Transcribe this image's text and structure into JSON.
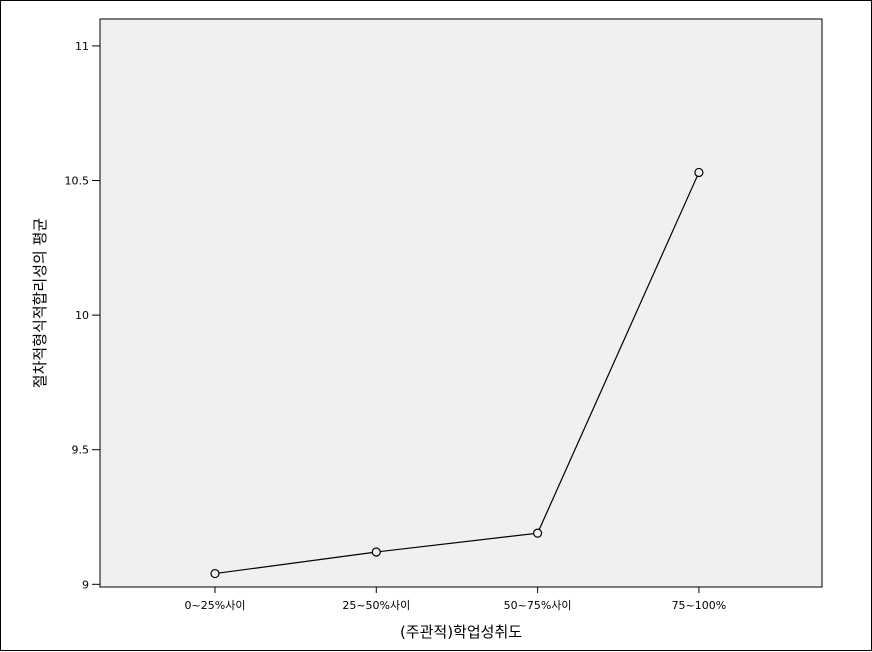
{
  "chart_data": {
    "type": "line",
    "title": "",
    "xlabel": "(주관적)학업성취도",
    "ylabel": "절차적형식적합리성의 평균",
    "categories": [
      "0~25%사이",
      "25~50%사이",
      "50~75%사이",
      "75~100%"
    ],
    "series": [
      {
        "values": [
          9.04,
          9.12,
          9.19,
          10.53
        ]
      }
    ],
    "ylim": [
      8.99,
      11.1
    ],
    "yticks": [
      9,
      9.5,
      10,
      10.5,
      11
    ],
    "ytick_labels": [
      "9",
      "9.5",
      "10",
      "10.5",
      "11"
    ],
    "grid": false,
    "legend": "none",
    "colors": {
      "plot_background": "#f0f0f0",
      "line": "#000000",
      "marker_fill": "#f0f0f0"
    }
  }
}
